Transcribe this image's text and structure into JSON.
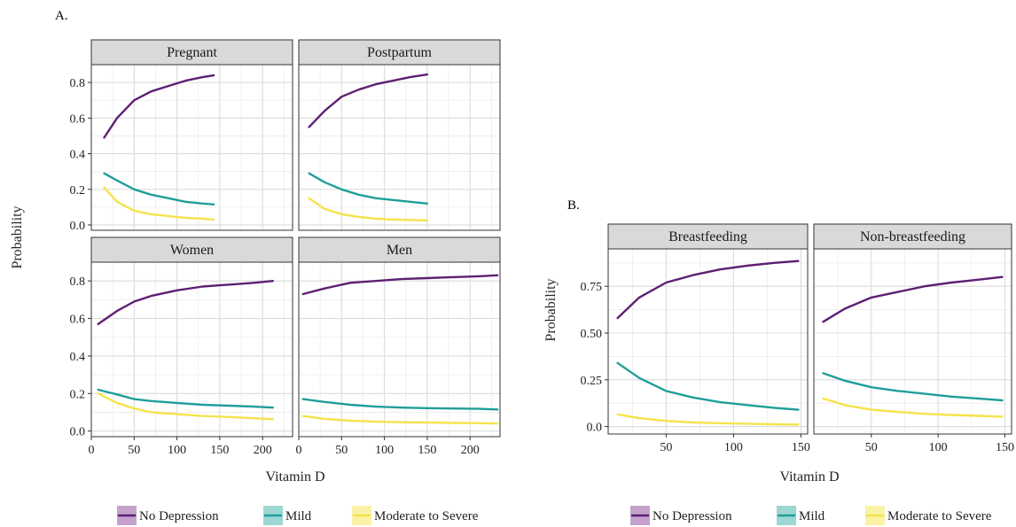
{
  "panel_labels": {
    "a": "A.",
    "b": "B."
  },
  "legend": {
    "items": [
      {
        "label": "No Depression",
        "color": "#5E1F73",
        "key_fill": "#C4A2CC"
      },
      {
        "label": "Mild",
        "color": "#1F9E9A",
        "key_fill": "#9DD6D2"
      },
      {
        "label": "Moderate to Severe",
        "color": "#F5E34B",
        "key_fill": "#FAF2A6"
      }
    ]
  },
  "chart_data": [
    {
      "type": "line",
      "title": "",
      "panel": "A",
      "xlabel": "Vitamin D",
      "ylabel": "Probability",
      "facets": [
        {
          "strip": "Pregnant",
          "xlim": [
            0,
            235
          ],
          "ylim": [
            -0.03,
            0.9
          ],
          "series": [
            {
              "name": "No Depression",
              "x": [
                15,
                30,
                50,
                70,
                90,
                110,
                130,
                143
              ],
              "y": [
                0.49,
                0.6,
                0.7,
                0.75,
                0.78,
                0.81,
                0.83,
                0.84
              ]
            },
            {
              "name": "Mild",
              "x": [
                15,
                30,
                50,
                70,
                90,
                110,
                130,
                143
              ],
              "y": [
                0.29,
                0.25,
                0.2,
                0.17,
                0.15,
                0.13,
                0.12,
                0.115
              ]
            },
            {
              "name": "Moderate to Severe",
              "x": [
                15,
                30,
                50,
                70,
                90,
                110,
                130,
                143
              ],
              "y": [
                0.21,
                0.13,
                0.08,
                0.06,
                0.05,
                0.04,
                0.035,
                0.03
              ]
            }
          ]
        },
        {
          "strip": "Postpartum",
          "xlim": [
            0,
            235
          ],
          "ylim": [
            -0.03,
            0.9
          ],
          "series": [
            {
              "name": "No Depression",
              "x": [
                12,
                30,
                50,
                70,
                90,
                110,
                130,
                150
              ],
              "y": [
                0.55,
                0.64,
                0.72,
                0.76,
                0.79,
                0.81,
                0.83,
                0.845
              ]
            },
            {
              "name": "Mild",
              "x": [
                12,
                30,
                50,
                70,
                90,
                110,
                130,
                150
              ],
              "y": [
                0.29,
                0.24,
                0.2,
                0.17,
                0.15,
                0.14,
                0.13,
                0.12
              ]
            },
            {
              "name": "Moderate to Severe",
              "x": [
                12,
                30,
                50,
                70,
                90,
                110,
                130,
                150
              ],
              "y": [
                0.15,
                0.09,
                0.06,
                0.045,
                0.035,
                0.03,
                0.028,
                0.025
              ]
            }
          ]
        },
        {
          "strip": "Women",
          "xlim": [
            0,
            235
          ],
          "ylim": [
            -0.03,
            0.9
          ],
          "series": [
            {
              "name": "No Depression",
              "x": [
                8,
                30,
                50,
                70,
                100,
                130,
                160,
                190,
                212
              ],
              "y": [
                0.57,
                0.64,
                0.69,
                0.72,
                0.75,
                0.77,
                0.78,
                0.79,
                0.8
              ]
            },
            {
              "name": "Mild",
              "x": [
                8,
                30,
                50,
                70,
                100,
                130,
                160,
                190,
                212
              ],
              "y": [
                0.22,
                0.195,
                0.17,
                0.16,
                0.15,
                0.14,
                0.135,
                0.13,
                0.125
              ]
            },
            {
              "name": "Moderate to Severe",
              "x": [
                8,
                30,
                50,
                70,
                100,
                130,
                160,
                190,
                212
              ],
              "y": [
                0.2,
                0.15,
                0.12,
                0.1,
                0.09,
                0.08,
                0.075,
                0.068,
                0.063
              ]
            }
          ]
        },
        {
          "strip": "Men",
          "xlim": [
            0,
            235
          ],
          "ylim": [
            -0.03,
            0.9
          ],
          "series": [
            {
              "name": "No Depression",
              "x": [
                5,
                30,
                60,
                90,
                120,
                150,
                180,
                210,
                232
              ],
              "y": [
                0.73,
                0.76,
                0.79,
                0.8,
                0.81,
                0.815,
                0.82,
                0.825,
                0.83
              ]
            },
            {
              "name": "Mild",
              "x": [
                5,
                30,
                60,
                90,
                120,
                150,
                180,
                210,
                232
              ],
              "y": [
                0.17,
                0.155,
                0.14,
                0.13,
                0.125,
                0.122,
                0.12,
                0.118,
                0.115
              ]
            },
            {
              "name": "Moderate to Severe",
              "x": [
                5,
                30,
                60,
                90,
                120,
                150,
                180,
                210,
                232
              ],
              "y": [
                0.08,
                0.065,
                0.055,
                0.05,
                0.047,
                0.045,
                0.043,
                0.042,
                0.04
              ]
            }
          ]
        }
      ],
      "x_ticks": [
        0,
        50,
        100,
        150,
        200
      ],
      "y_ticks": [
        0.0,
        0.2,
        0.4,
        0.6,
        0.8
      ],
      "y_tick_labels": [
        "0.0",
        "0.2",
        "0.4",
        "0.6",
        "0.8"
      ],
      "grid": true
    },
    {
      "type": "line",
      "title": "",
      "panel": "B",
      "xlabel": "Vitamin D",
      "ylabel": "Probability",
      "facets": [
        {
          "strip": "Breastfeeding",
          "xlim": [
            7,
            155
          ],
          "ylim": [
            -0.04,
            0.95
          ],
          "series": [
            {
              "name": "No Depression",
              "x": [
                14,
                30,
                50,
                70,
                90,
                110,
                130,
                148
              ],
              "y": [
                0.58,
                0.69,
                0.77,
                0.81,
                0.84,
                0.86,
                0.875,
                0.885
              ]
            },
            {
              "name": "Mild",
              "x": [
                14,
                30,
                50,
                70,
                90,
                110,
                130,
                148
              ],
              "y": [
                0.34,
                0.26,
                0.19,
                0.155,
                0.13,
                0.115,
                0.1,
                0.09
              ]
            },
            {
              "name": "Moderate to Severe",
              "x": [
                14,
                30,
                50,
                70,
                90,
                110,
                130,
                148
              ],
              "y": [
                0.065,
                0.045,
                0.03,
                0.022,
                0.018,
                0.015,
                0.012,
                0.01
              ]
            }
          ]
        },
        {
          "strip": "Non-breastfeeding",
          "xlim": [
            7,
            155
          ],
          "ylim": [
            -0.04,
            0.95
          ],
          "series": [
            {
              "name": "No Depression",
              "x": [
                14,
                30,
                50,
                70,
                90,
                110,
                130,
                148
              ],
              "y": [
                0.56,
                0.63,
                0.69,
                0.72,
                0.75,
                0.77,
                0.785,
                0.8
              ]
            },
            {
              "name": "Mild",
              "x": [
                14,
                30,
                50,
                70,
                90,
                110,
                130,
                148
              ],
              "y": [
                0.285,
                0.245,
                0.21,
                0.19,
                0.175,
                0.16,
                0.15,
                0.14
              ]
            },
            {
              "name": "Moderate to Severe",
              "x": [
                14,
                30,
                50,
                70,
                90,
                110,
                130,
                148
              ],
              "y": [
                0.15,
                0.115,
                0.09,
                0.078,
                0.068,
                0.062,
                0.057,
                0.053
              ]
            }
          ]
        }
      ],
      "x_ticks": [
        50,
        100,
        150
      ],
      "y_ticks": [
        0.0,
        0.25,
        0.5,
        0.75
      ],
      "y_tick_labels": [
        "0.0",
        "0.25",
        "0.50",
        "0.75"
      ],
      "grid": true
    }
  ]
}
